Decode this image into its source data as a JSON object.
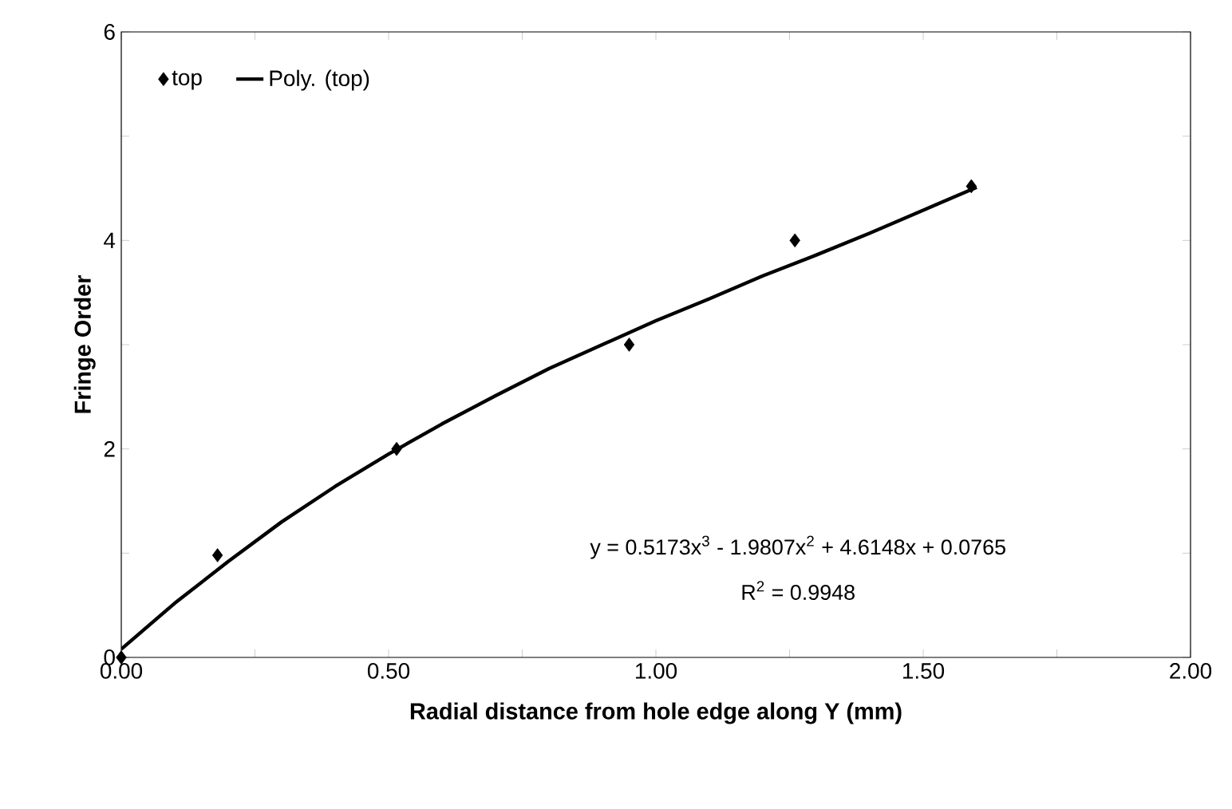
{
  "chart_data": {
    "type": "scatter",
    "xlabel": "Radial distance from hole edge along Y (mm)",
    "ylabel": "Fringe Order",
    "xlim": [
      0,
      2
    ],
    "ylim": [
      0,
      6
    ],
    "xticks": [
      {
        "value": 0,
        "label": "0.00"
      },
      {
        "value": 0.25,
        "label": null
      },
      {
        "value": 0.5,
        "label": "0.50"
      },
      {
        "value": 0.75,
        "label": null
      },
      {
        "value": 1,
        "label": "1.00"
      },
      {
        "value": 1.25,
        "label": null
      },
      {
        "value": 1.5,
        "label": "1.50"
      },
      {
        "value": 1.75,
        "label": null
      },
      {
        "value": 2,
        "label": "2.00"
      }
    ],
    "yticks": [
      0,
      {
        "value": 1,
        "label": null
      },
      2,
      {
        "value": 3,
        "label": null
      },
      4,
      {
        "value": 5,
        "label": null
      },
      6
    ],
    "series": [
      {
        "name": "top",
        "marker": "diamond",
        "color": "#000000",
        "x": [
          0,
          0.18,
          0.515,
          0.95,
          1.26,
          1.59
        ],
        "values": [
          0,
          0.98,
          2,
          3,
          4,
          4.52
        ]
      },
      {
        "name": "Poly. (top)",
        "type": "line",
        "marker": "none",
        "line_style": "solid",
        "color": "#000000",
        "x": [
          0,
          0.1,
          0.2,
          0.3,
          0.4,
          0.5,
          0.6,
          0.7,
          0.8,
          0.9,
          1.0,
          1.1,
          1.2,
          1.3,
          1.4,
          1.5,
          1.6
        ],
        "values": [
          0.08,
          0.52,
          0.92,
          1.3,
          1.64,
          1.95,
          2.24,
          2.51,
          2.77,
          3.0,
          3.23,
          3.44,
          3.66,
          3.86,
          4.07,
          4.29,
          4.51
        ]
      }
    ],
    "annotations": [
      "y = 0.5173x$^{3}$ - 1.9807x$^{2}$ + 4.6148x + 0.0765",
      "R$^{2}$ = 0.9948"
    ],
    "legend": "top left",
    "grid": false
  }
}
